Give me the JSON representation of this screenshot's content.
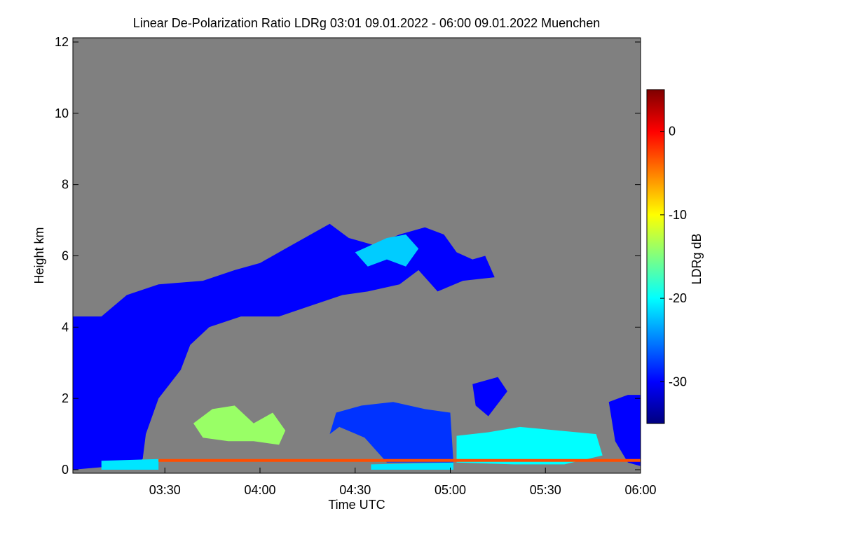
{
  "chart_data": {
    "type": "heatmap",
    "title": "Linear De-Polarization Ratio LDRg   03:01 09.01.2022 - 06:00 09.01.2022 Muenchen",
    "xlabel": "Time UTC",
    "ylabel": "Height km",
    "x_ticks": [
      "03:30",
      "04:00",
      "04:30",
      "05:00",
      "05:30",
      "06:00"
    ],
    "x_tick_minutes": [
      210,
      240,
      270,
      300,
      330,
      360
    ],
    "xlim_minutes": [
      181,
      360
    ],
    "y_ticks": [
      "0",
      "2",
      "4",
      "6",
      "8",
      "10",
      "12"
    ],
    "ylim": [
      0,
      12
    ],
    "colorbar": {
      "label": "LDRg dB",
      "ticks": [
        "0",
        "-10",
        "-20",
        "-30"
      ],
      "tick_values": [
        0,
        -10,
        -20,
        -30
      ],
      "range": [
        -35,
        5
      ],
      "colors": [
        "#00007f",
        "#0000ff",
        "#0080ff",
        "#00ffff",
        "#80ff80",
        "#ffff00",
        "#ff8000",
        "#ff0000",
        "#7f0000"
      ]
    },
    "background_color": "#808080",
    "regions": [
      {
        "name": "cirrus-band",
        "ldr_db": -30,
        "points": [
          [
            181,
            0
          ],
          [
            181,
            4.3
          ],
          [
            190,
            4.3
          ],
          [
            198,
            4.9
          ],
          [
            208,
            5.2
          ],
          [
            222,
            5.3
          ],
          [
            232,
            5.6
          ],
          [
            240,
            5.8
          ],
          [
            248,
            6.2
          ],
          [
            258,
            6.7
          ],
          [
            262,
            6.9
          ],
          [
            268,
            6.5
          ],
          [
            276,
            6.3
          ],
          [
            284,
            6.6
          ],
          [
            292,
            6.8
          ],
          [
            298,
            6.6
          ],
          [
            302,
            6.1
          ],
          [
            307,
            5.9
          ],
          [
            311,
            6.0
          ],
          [
            314,
            5.4
          ],
          [
            304,
            5.3
          ],
          [
            296,
            5.0
          ],
          [
            290,
            5.6
          ],
          [
            284,
            5.2
          ],
          [
            274,
            5.0
          ],
          [
            266,
            4.9
          ],
          [
            256,
            4.6
          ],
          [
            246,
            4.3
          ],
          [
            234,
            4.3
          ],
          [
            224,
            4.0
          ],
          [
            218,
            3.5
          ],
          [
            215,
            2.8
          ],
          [
            208,
            2.0
          ],
          [
            204,
            1.0
          ],
          [
            203,
            0.3
          ],
          [
            200,
            0.15
          ]
        ]
      },
      {
        "name": "upper-cirrus-patch",
        "ldr_db": -22,
        "points": [
          [
            270,
            6.1
          ],
          [
            280,
            6.5
          ],
          [
            286,
            6.6
          ],
          [
            290,
            6.2
          ],
          [
            286,
            5.7
          ],
          [
            280,
            5.9
          ],
          [
            274,
            5.7
          ]
        ]
      },
      {
        "name": "low-cloud-0430",
        "ldr_db": -28,
        "points": [
          [
            264,
            1.6
          ],
          [
            272,
            1.8
          ],
          [
            282,
            1.9
          ],
          [
            292,
            1.7
          ],
          [
            300,
            1.6
          ],
          [
            301,
            0.2
          ],
          [
            280,
            0.2
          ],
          [
            273,
            0.9
          ],
          [
            265,
            1.2
          ],
          [
            262,
            1.0
          ]
        ]
      },
      {
        "name": "low-cloud-0505",
        "ldr_db": -20,
        "points": [
          [
            302,
            0.2
          ],
          [
            302,
            0.95
          ],
          [
            312,
            1.05
          ],
          [
            322,
            1.2
          ],
          [
            334,
            1.1
          ],
          [
            346,
            1.0
          ],
          [
            348,
            0.4
          ],
          [
            336,
            0.15
          ],
          [
            320,
            0.15
          ]
        ]
      },
      {
        "name": "low-cloud-0340",
        "ldr_db": -14,
        "points": [
          [
            219,
            1.3
          ],
          [
            225,
            1.7
          ],
          [
            232,
            1.8
          ],
          [
            238,
            1.3
          ],
          [
            244,
            1.6
          ],
          [
            248,
            1.1
          ],
          [
            246,
            0.7
          ],
          [
            238,
            0.8
          ],
          [
            230,
            0.8
          ],
          [
            222,
            0.9
          ]
        ]
      },
      {
        "name": "mid-patch-0515",
        "ldr_db": -30,
        "points": [
          [
            307,
            2.4
          ],
          [
            315,
            2.6
          ],
          [
            318,
            2.2
          ],
          [
            312,
            1.5
          ],
          [
            308,
            1.8
          ]
        ]
      },
      {
        "name": "low-cloud-0600",
        "ldr_db": -30,
        "points": [
          [
            350,
            1.9
          ],
          [
            356,
            2.1
          ],
          [
            360,
            2.1
          ],
          [
            360,
            0.1
          ],
          [
            356,
            0.2
          ],
          [
            352,
            0.8
          ]
        ]
      },
      {
        "name": "surface-layer",
        "ldr_db": -21,
        "points": [
          [
            190,
            0.0
          ],
          [
            190,
            0.25
          ],
          [
            208,
            0.3
          ],
          [
            208,
            0.0
          ]
        ]
      },
      {
        "name": "surface-layer-2",
        "ldr_db": -21,
        "points": [
          [
            275,
            0.0
          ],
          [
            275,
            0.15
          ],
          [
            301,
            0.2
          ],
          [
            301,
            0.0
          ]
        ]
      },
      {
        "name": "near-ground-line",
        "ldr_db": -3,
        "points": [
          [
            208,
            0.22
          ],
          [
            208,
            0.3
          ],
          [
            360,
            0.3
          ],
          [
            360,
            0.22
          ]
        ]
      }
    ]
  }
}
